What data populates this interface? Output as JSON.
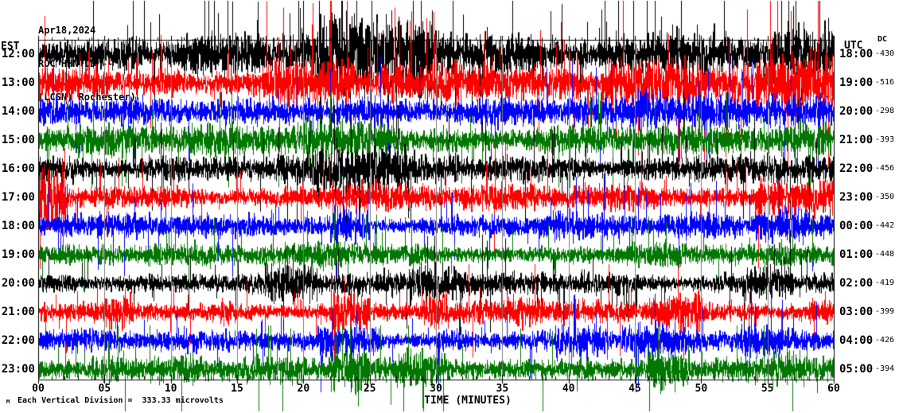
{
  "header": {
    "date": "Apr18,2024",
    "station_line": "ROC HHN LD --",
    "location_line": "(LCSN) Rochester)"
  },
  "axes": {
    "left_timezone": "EST",
    "right_timezone": "UTC",
    "dc_header": "DC",
    "x_title": "TIME (MINUTES)",
    "x_tick_labels": [
      "00",
      "05",
      "10",
      "15",
      "20",
      "25",
      "30",
      "35",
      "40",
      "45",
      "50",
      "55",
      "60"
    ],
    "x_minor_step_minutes": 1,
    "x_major_step_minutes": 5
  },
  "footer": {
    "glyph": "M",
    "scale_note": "Each Vertical Division =  333.33 microvolts"
  },
  "colors": {
    "trace_cycle": [
      "#000000",
      "#ff0000",
      "#0000ff",
      "#007700"
    ],
    "grid": "#7f7f7f",
    "axis": "#000000",
    "text": "#000000",
    "background": "#ffffff"
  },
  "chart_data": {
    "type": "line",
    "subtype": "helicorder-seismogram",
    "title": "ROC HHN LD -- (LCSN) Rochester)  Apr18,2024",
    "xlabel": "TIME (MINUTES)",
    "x_range_minutes": [
      0,
      60
    ],
    "row_meaning": "one hour of continuous ground-motion noise per trace row; EST hour at left, UTC hour at right, DC offset value at far right",
    "vertical_division_microvolts": 333.33,
    "grid": {
      "color": "#7f7f7f",
      "interval_minutes": 5
    },
    "seed": 20240418,
    "rows": [
      {
        "est": "12:00",
        "utc": "18:00",
        "dc": "-430",
        "color": "#000000",
        "amp": 12,
        "spike_p": 0.1,
        "clip": 105,
        "bursts": [
          [
            21,
            30,
            2.2
          ],
          [
            33,
            38,
            1.4
          ],
          [
            43,
            51,
            1.5
          ],
          [
            55,
            60,
            1.3
          ]
        ]
      },
      {
        "est": "13:00",
        "utc": "19:00",
        "dc": "-516",
        "color": "#ff0000",
        "amp": 10,
        "spike_p": 0.09,
        "clip": 105,
        "bursts": [
          [
            17,
            24,
            1.5
          ],
          [
            30,
            34,
            1.3
          ],
          [
            43,
            52,
            1.9
          ],
          [
            52,
            60,
            2.2
          ]
        ]
      },
      {
        "est": "14:00",
        "utc": "20:00",
        "dc": "-298",
        "color": "#0000ff",
        "amp": 8.5,
        "spike_p": 0.05,
        "clip": 70,
        "bursts": [
          [
            20,
            26,
            1.4
          ],
          [
            45,
            52,
            1.3
          ],
          [
            55,
            60,
            1.4
          ]
        ]
      },
      {
        "est": "15:00",
        "utc": "21:00",
        "dc": "-393",
        "color": "#007700",
        "amp": 9,
        "spike_p": 0.05,
        "clip": 60,
        "bursts": [
          [
            19,
            28,
            1.3
          ],
          [
            38,
            42,
            1.2
          ]
        ]
      },
      {
        "est": "16:00",
        "utc": "22:00",
        "dc": "-456",
        "color": "#000000",
        "amp": 8.5,
        "spike_p": 0.06,
        "clip": 80,
        "bursts": [
          [
            0,
            3,
            1.2
          ],
          [
            21,
            28,
            1.8
          ],
          [
            49,
            54,
            1.3
          ]
        ]
      },
      {
        "est": "17:00",
        "utc": "23:00",
        "dc": "-350",
        "color": "#ff0000",
        "amp": 7.5,
        "spike_p": 0.05,
        "clip": 90,
        "bursts": [
          [
            0,
            2,
            2.6
          ],
          [
            21,
            26,
            1.4
          ],
          [
            54,
            60,
            2.4
          ]
        ]
      },
      {
        "est": "18:00",
        "utc": "00:00",
        "dc": "-442",
        "color": "#0000ff",
        "amp": 7,
        "spike_p": 0.05,
        "clip": 75,
        "bursts": [
          [
            22,
            25,
            2.0
          ],
          [
            38,
            41,
            1.3
          ],
          [
            54,
            58,
            1.7
          ]
        ]
      },
      {
        "est": "19:00",
        "utc": "01:00",
        "dc": "-448",
        "color": "#007700",
        "amp": 6.5,
        "spike_p": 0.04,
        "clip": 55,
        "bursts": [
          [
            21,
            26,
            1.3
          ],
          [
            44,
            48,
            1.2
          ]
        ]
      },
      {
        "est": "20:00",
        "utc": "02:00",
        "dc": "-419",
        "color": "#000000",
        "amp": 7,
        "spike_p": 0.05,
        "clip": 65,
        "bursts": [
          [
            17,
            21,
            1.6
          ],
          [
            28,
            32,
            1.6
          ],
          [
            41,
            44,
            1.3
          ],
          [
            53,
            57,
            1.5
          ]
        ]
      },
      {
        "est": "21:00",
        "utc": "03:00",
        "dc": "-399",
        "color": "#ff0000",
        "amp": 6.5,
        "spike_p": 0.05,
        "clip": 60,
        "bursts": [
          [
            5,
            7,
            1.8
          ],
          [
            13,
            15,
            1.6
          ],
          [
            22,
            25,
            2.0
          ],
          [
            29,
            31,
            1.7
          ],
          [
            35,
            38,
            1.6
          ],
          [
            46,
            50,
            1.9
          ],
          [
            58,
            60,
            1.6
          ]
        ]
      },
      {
        "est": "22:00",
        "utc": "04:00",
        "dc": "-426",
        "color": "#0000ff",
        "amp": 6.5,
        "spike_p": 0.05,
        "clip": 65,
        "bursts": [
          [
            21,
            26,
            2.0
          ],
          [
            30,
            33,
            1.4
          ],
          [
            39,
            43,
            1.6
          ],
          [
            44,
            48,
            1.6
          ],
          [
            53,
            56,
            1.5
          ]
        ]
      },
      {
        "est": "23:00",
        "utc": "05:00",
        "dc": "-394",
        "color": "#007700",
        "amp": 7.5,
        "spike_p": 0.06,
        "clip": 55,
        "bursts": [
          [
            4,
            6,
            1.6
          ],
          [
            10,
            12,
            1.4
          ],
          [
            22,
            25,
            1.8
          ],
          [
            27,
            31,
            1.5
          ],
          [
            38,
            42,
            1.4
          ],
          [
            46,
            49,
            2.0
          ],
          [
            55,
            58,
            1.4
          ]
        ]
      }
    ]
  }
}
